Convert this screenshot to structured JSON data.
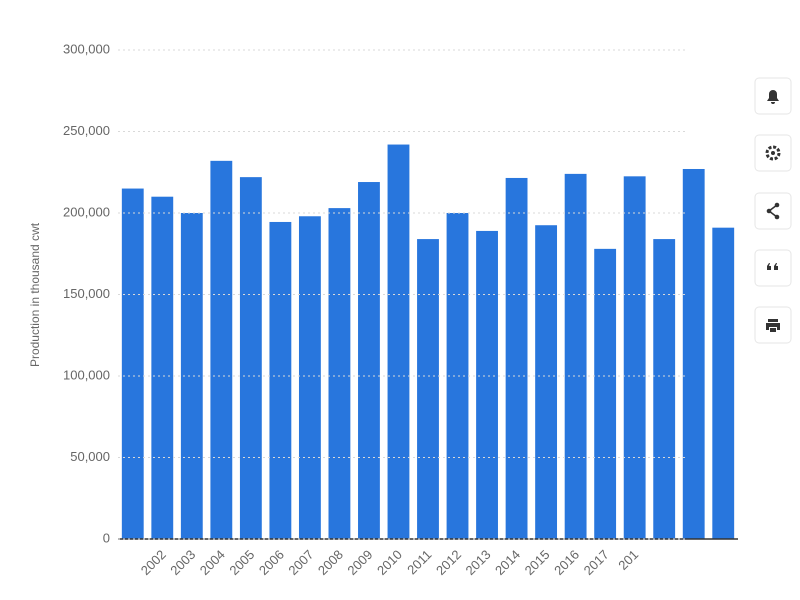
{
  "chart_data": {
    "type": "bar",
    "y_label": "Production in thousand cwt",
    "categories": [
      null,
      "2002",
      "2003",
      "2004",
      "2005",
      "2006",
      "2007",
      "2008",
      "2009",
      "2010",
      "2011",
      "2012",
      "2013",
      "2014",
      "2015",
      "2016",
      "2017",
      "201",
      null,
      null,
      null
    ],
    "values": [
      215000,
      210000,
      200000,
      232000,
      222000,
      194500,
      198000,
      203000,
      219000,
      242000,
      184000,
      200000,
      189000,
      221500,
      192500,
      224000,
      178000,
      222500,
      184000,
      227000,
      191000
    ],
    "color": "#2876dd",
    "ylim": [
      0,
      300000
    ],
    "yticks": [
      0,
      {
        "value": 50000,
        "label": "50,000"
      },
      {
        "value": 100000,
        "label": "100,000"
      },
      {
        "value": 150000,
        "label": "150,000"
      },
      {
        "value": 200000,
        "label": "200,000"
      },
      {
        "value": 250000,
        "label": "250,000"
      },
      {
        "value": 300000,
        "label": "300,000"
      }
    ],
    "grid": true
  }
}
